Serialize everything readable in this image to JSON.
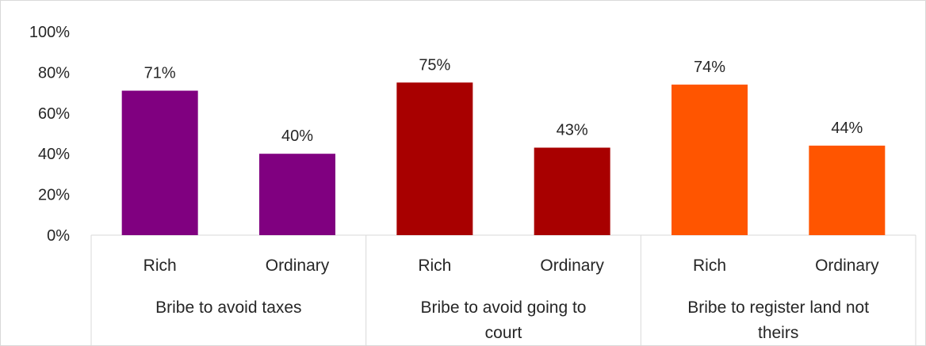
{
  "chart_data": {
    "type": "bar",
    "title": "",
    "xlabel": "",
    "ylabel": "",
    "ylim": [
      0,
      100
    ],
    "y_ticks": [
      "0%",
      "20%",
      "40%",
      "60%",
      "80%",
      "100%"
    ],
    "groups": [
      {
        "label": "Bribe to avoid taxes",
        "label_lines": [
          "Bribe to avoid taxes"
        ],
        "color": "#800080",
        "bars": [
          {
            "category": "Rich",
            "value": 71,
            "label": "71%"
          },
          {
            "category": "Ordinary",
            "value": 40,
            "label": "40%"
          }
        ]
      },
      {
        "label": "Bribe to avoid going to court",
        "label_lines": [
          "Bribe to avoid going to",
          "court"
        ],
        "color": "#A80000",
        "bars": [
          {
            "category": "Rich",
            "value": 75,
            "label": "75%"
          },
          {
            "category": "Ordinary",
            "value": 43,
            "label": "43%"
          }
        ]
      },
      {
        "label": "Bribe to register land not theirs",
        "label_lines": [
          "Bribe to register land not",
          "theirs"
        ],
        "color": "#FF5500",
        "bars": [
          {
            "category": "Rich",
            "value": 74,
            "label": "74%"
          },
          {
            "category": "Ordinary",
            "value": 44,
            "label": "44%"
          }
        ]
      }
    ],
    "grid": false,
    "legend": "none"
  }
}
